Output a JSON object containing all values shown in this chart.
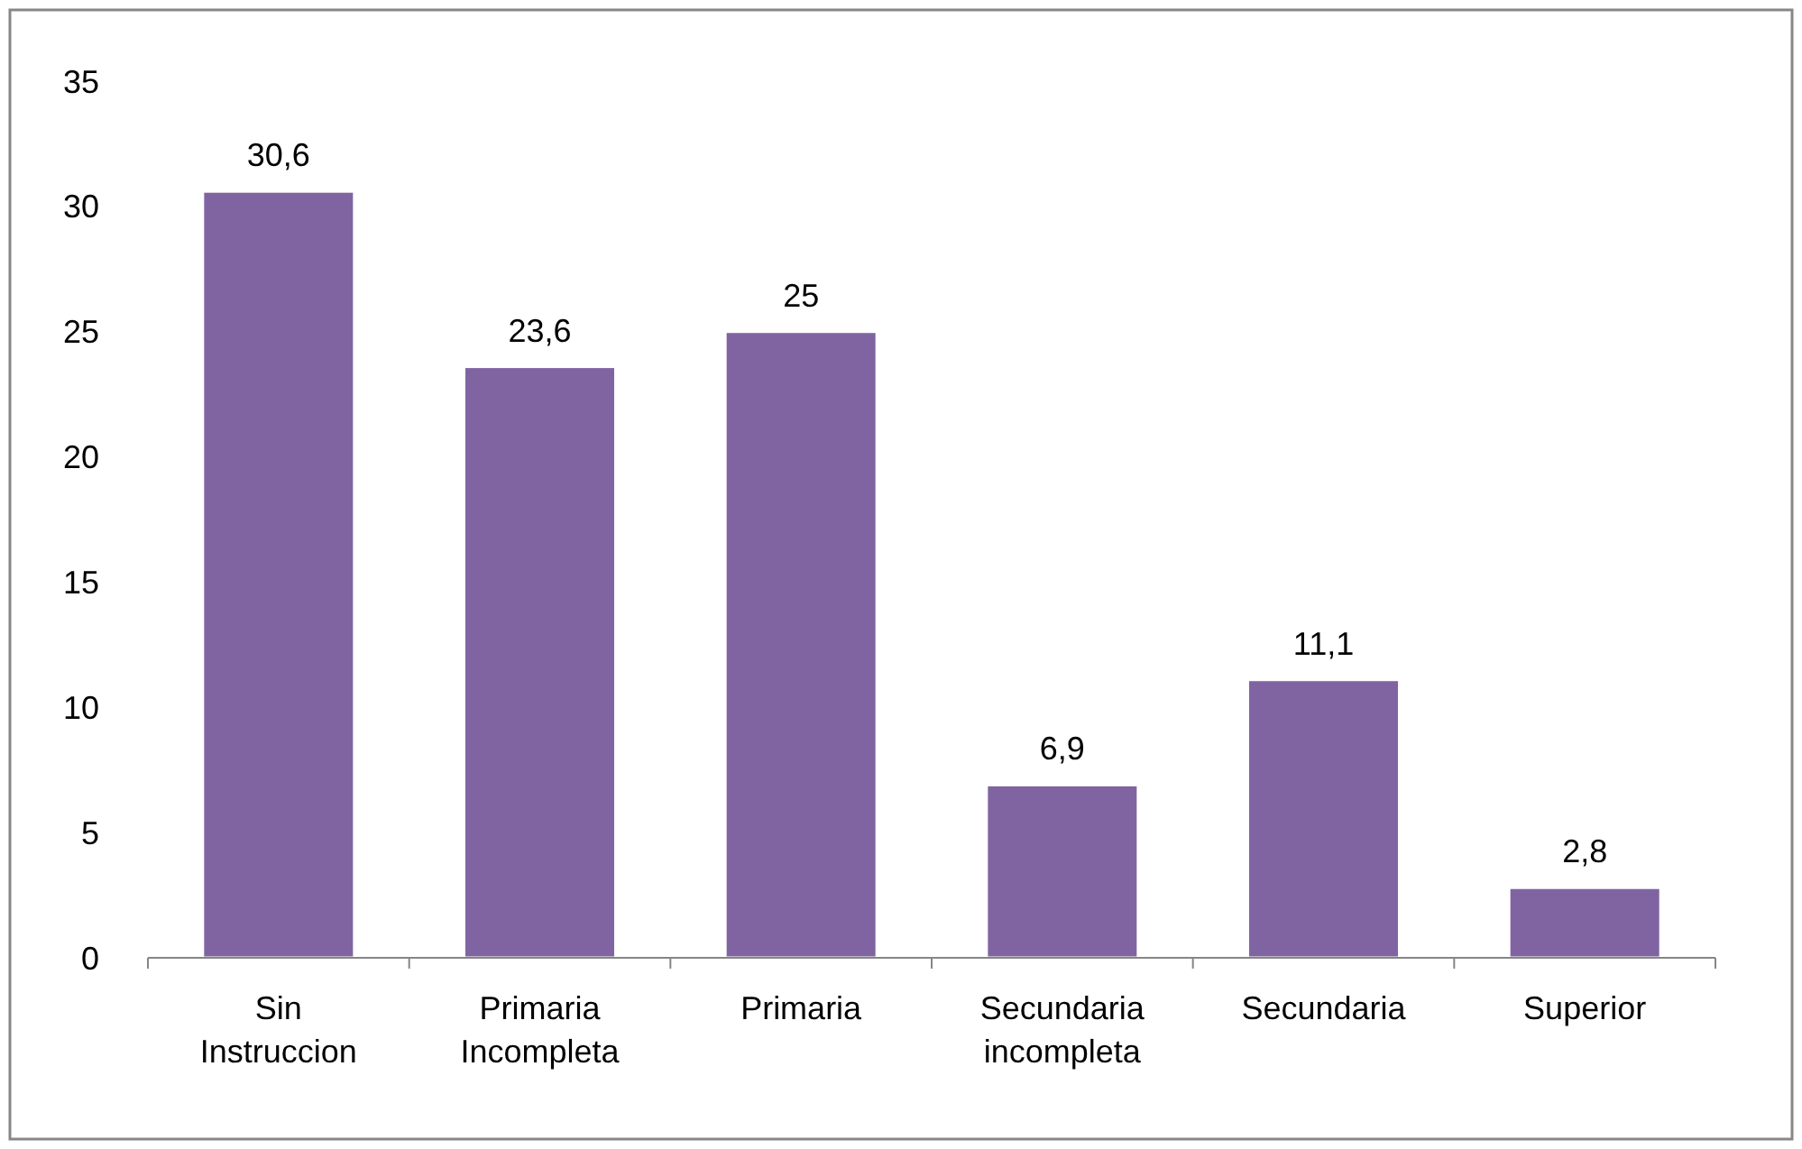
{
  "chart_data": {
    "type": "bar",
    "categories": [
      "Sin Instruccion",
      "Primaria Incompleta",
      "Primaria",
      "Secundaria incompleta",
      "Secundaria",
      "Superior"
    ],
    "values": [
      30.6,
      23.6,
      25,
      6.9,
      11.1,
      2.8
    ],
    "value_labels": [
      "30,6",
      "23,6",
      "25",
      "6,9",
      "11,1",
      "2,8"
    ],
    "color": "#8064a2",
    "ylim": [
      0,
      35
    ],
    "yticks": [
      0,
      5,
      10,
      15,
      20,
      25,
      30,
      35
    ],
    "grid": false
  }
}
